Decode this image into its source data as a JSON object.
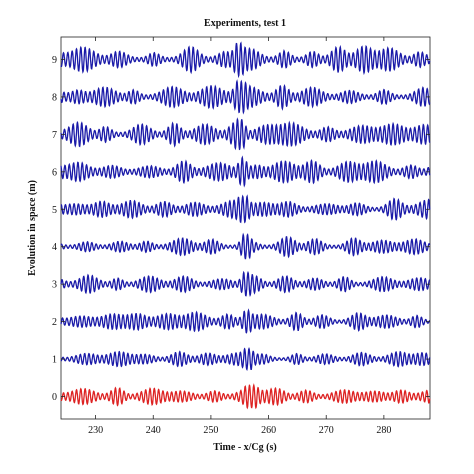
{
  "chart_data": {
    "type": "line",
    "title": "Experiments, test 1",
    "xlabel": "Time - x/Cg (s)",
    "ylabel": "Evolution in space (m)",
    "xlim": [
      224,
      288
    ],
    "ylim": [
      -0.6,
      9.6
    ],
    "xticks": [
      230,
      240,
      250,
      260,
      270,
      280
    ],
    "yticks": [
      0,
      1,
      2,
      3,
      4,
      5,
      6,
      7,
      8,
      9
    ],
    "grid": false,
    "legend": "none",
    "series": [
      {
        "offset": 0,
        "color": "#dd2222",
        "peak_time": 257.0,
        "amplitude": 0.26
      },
      {
        "offset": 1,
        "color": "#1a1aa8",
        "peak_time": 256.5,
        "amplitude": 0.24
      },
      {
        "offset": 2,
        "color": "#1a1aa8",
        "peak_time": 256.2,
        "amplitude": 0.26
      },
      {
        "offset": 3,
        "color": "#1a1aa8",
        "peak_time": 256.0,
        "amplitude": 0.27
      },
      {
        "offset": 4,
        "color": "#1a1aa8",
        "peak_time": 256.0,
        "amplitude": 0.28
      },
      {
        "offset": 5,
        "color": "#1a1aa8",
        "peak_time": 255.7,
        "amplitude": 0.3
      },
      {
        "offset": 6,
        "color": "#1a1aa8",
        "peak_time": 255.5,
        "amplitude": 0.33
      },
      {
        "offset": 7,
        "color": "#1a1aa8",
        "peak_time": 255.2,
        "amplitude": 0.35
      },
      {
        "offset": 8,
        "color": "#1a1aa8",
        "peak_time": 255.0,
        "amplitude": 0.36
      },
      {
        "offset": 9,
        "color": "#1a1aa8",
        "peak_time": 254.8,
        "amplitude": 0.38
      }
    ]
  }
}
